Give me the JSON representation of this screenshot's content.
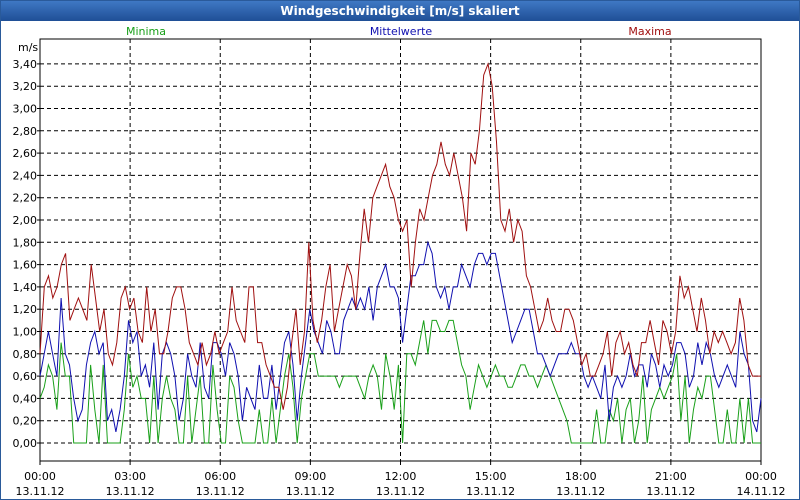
{
  "window": {
    "title": "Windgeschwindigkeit [m/s] skaliert"
  },
  "chart_data": {
    "type": "line",
    "unit_label": "m/s",
    "ylim": [
      0,
      3.5
    ],
    "yticks": [
      "0,00",
      "0,20",
      "0,40",
      "0,60",
      "0,80",
      "1,00",
      "1,20",
      "1,40",
      "1,60",
      "1,80",
      "2,00",
      "2,20",
      "2,40",
      "2,60",
      "2,80",
      "3,00",
      "3,20",
      "3,40"
    ],
    "xticks": [
      {
        "time": "00:00",
        "date": "13.11.12"
      },
      {
        "time": "03:00",
        "date": "13.11.12"
      },
      {
        "time": "06:00",
        "date": "13.11.12"
      },
      {
        "time": "09:00",
        "date": "13.11.12"
      },
      {
        "time": "12:00",
        "date": "13.11.12"
      },
      {
        "time": "15:00",
        "date": "13.11.12"
      },
      {
        "time": "18:00",
        "date": "13.11.12"
      },
      {
        "time": "21:00",
        "date": "13.11.12"
      },
      {
        "time": "00:00",
        "date": "14.11.12"
      }
    ],
    "x_range_hours": [
      0,
      24
    ],
    "grid": true,
    "legend_position": "top",
    "series": [
      {
        "name": "Minima",
        "color": "#1aa01a",
        "values": [
          0.4,
          0.5,
          0.7,
          0.6,
          0.3,
          0.9,
          0.6,
          0.6,
          0.0,
          0.0,
          0.0,
          0.0,
          0.7,
          0.3,
          0.0,
          0.7,
          0.0,
          0.0,
          0.0,
          0.0,
          0.3,
          0.8,
          0.5,
          0.6,
          0.4,
          0.4,
          0.0,
          0.6,
          0.0,
          0.4,
          0.6,
          0.4,
          0.3,
          0.0,
          0.0,
          0.6,
          0.0,
          0.3,
          0.6,
          0.0,
          0.0,
          0.7,
          0.3,
          0.0,
          0.0,
          0.6,
          0.5,
          0.2,
          0.0,
          0.0,
          0.0,
          0.0,
          0.3,
          0.0,
          0.0,
          0.4,
          0.0,
          0.3,
          0.6,
          0.8,
          0.5,
          0.0,
          0.4,
          0.6,
          0.8,
          0.8,
          0.6,
          0.6,
          0.6,
          0.6,
          0.6,
          0.5,
          0.6,
          0.6,
          0.6,
          0.6,
          0.5,
          0.4,
          0.6,
          0.7,
          0.6,
          0.3,
          0.8,
          0.6,
          0.3,
          0.7,
          0.0,
          0.8,
          0.8,
          0.7,
          0.9,
          1.1,
          0.8,
          1.1,
          1.1,
          1.0,
          1.0,
          1.1,
          1.1,
          0.9,
          0.7,
          0.6,
          0.3,
          0.5,
          0.7,
          0.6,
          0.5,
          0.6,
          0.7,
          0.6,
          0.6,
          0.5,
          0.5,
          0.6,
          0.7,
          0.7,
          0.6,
          0.6,
          0.5,
          0.6,
          0.7,
          0.6,
          0.5,
          0.4,
          0.3,
          0.2,
          0.0,
          0.0,
          0.0,
          0.0,
          0.0,
          0.0,
          0.3,
          0.0,
          0.0,
          0.3,
          0.2,
          0.4,
          0.0,
          0.3,
          0.4,
          0.0,
          0.2,
          0.6,
          0.0,
          0.3,
          0.4,
          0.5,
          0.4,
          0.5,
          0.6,
          0.8,
          0.2,
          0.6,
          0.0,
          0.3,
          0.5,
          0.4,
          0.6,
          0.6,
          0.3,
          0.0,
          0.0,
          0.3,
          0.0,
          0.0,
          0.4,
          0.0,
          0.4,
          0.0,
          0.0,
          0.0
        ]
      },
      {
        "name": "Mittelwerte",
        "color": "#1010b0",
        "values": [
          0.6,
          0.8,
          1.0,
          0.8,
          0.6,
          1.3,
          0.8,
          0.7,
          0.4,
          0.2,
          0.3,
          0.7,
          0.9,
          1.0,
          0.8,
          0.9,
          0.2,
          0.3,
          0.1,
          0.3,
          0.6,
          1.1,
          0.9,
          1.0,
          0.6,
          0.7,
          0.5,
          0.9,
          0.3,
          0.8,
          0.9,
          0.8,
          0.6,
          0.2,
          0.4,
          0.8,
          0.6,
          0.5,
          0.9,
          0.5,
          0.4,
          0.9,
          0.9,
          0.8,
          0.6,
          0.9,
          0.8,
          0.6,
          0.2,
          0.5,
          0.4,
          0.3,
          0.7,
          0.4,
          0.4,
          0.7,
          0.3,
          0.6,
          0.9,
          1.0,
          0.7,
          0.2,
          0.6,
          0.9,
          1.2,
          1.0,
          0.9,
          0.8,
          1.1,
          1.0,
          0.8,
          0.8,
          1.1,
          1.2,
          1.3,
          1.2,
          1.3,
          1.2,
          1.4,
          1.1,
          1.4,
          1.5,
          1.6,
          1.4,
          1.4,
          1.3,
          0.9,
          1.2,
          1.5,
          1.5,
          1.6,
          1.6,
          1.8,
          1.7,
          1.4,
          1.3,
          1.4,
          1.2,
          1.4,
          1.4,
          1.6,
          1.5,
          1.4,
          1.6,
          1.7,
          1.7,
          1.6,
          1.7,
          1.7,
          1.5,
          1.3,
          1.1,
          0.9,
          1.0,
          1.1,
          1.2,
          1.2,
          1.0,
          0.8,
          0.8,
          0.7,
          0.6,
          0.7,
          0.8,
          0.8,
          0.8,
          0.9,
          0.8,
          0.8,
          0.6,
          0.5,
          0.6,
          0.5,
          0.4,
          0.7,
          0.2,
          0.5,
          0.6,
          0.5,
          0.6,
          0.8,
          0.6,
          0.7,
          0.7,
          0.5,
          0.8,
          0.7,
          0.5,
          0.7,
          0.6,
          0.7,
          0.9,
          0.9,
          0.8,
          0.5,
          0.6,
          0.9,
          0.7,
          0.9,
          0.8,
          0.6,
          0.5,
          0.6,
          0.7,
          0.6,
          0.5,
          1.0,
          0.8,
          0.7,
          0.2,
          0.1,
          0.4
        ]
      },
      {
        "name": "Maxima",
        "color": "#a01010",
        "values": [
          0.8,
          1.4,
          1.5,
          1.3,
          1.4,
          1.6,
          1.7,
          1.1,
          1.2,
          1.3,
          1.2,
          1.1,
          1.6,
          1.3,
          1.0,
          1.2,
          0.8,
          0.7,
          0.9,
          1.3,
          1.4,
          1.2,
          1.3,
          1.0,
          0.9,
          1.4,
          1.0,
          1.2,
          0.8,
          0.8,
          1.0,
          1.3,
          1.4,
          1.4,
          1.2,
          0.9,
          0.8,
          0.7,
          0.9,
          0.7,
          0.8,
          1.0,
          0.8,
          0.9,
          1.0,
          1.4,
          1.1,
          1.0,
          0.9,
          1.4,
          1.4,
          0.9,
          0.9,
          0.7,
          0.6,
          0.5,
          0.5,
          0.3,
          0.5,
          0.9,
          1.2,
          0.7,
          1.0,
          1.8,
          1.1,
          0.9,
          1.1,
          1.4,
          1.6,
          1.0,
          1.2,
          1.4,
          1.6,
          1.5,
          1.2,
          1.7,
          2.1,
          1.8,
          2.2,
          2.3,
          2.4,
          2.5,
          2.3,
          2.2,
          2.0,
          1.9,
          2.0,
          1.4,
          1.8,
          2.1,
          2.0,
          2.2,
          2.4,
          2.5,
          2.7,
          2.5,
          2.4,
          2.6,
          2.4,
          2.2,
          1.9,
          2.6,
          2.5,
          2.8,
          3.3,
          3.4,
          3.2,
          2.7,
          2.0,
          1.9,
          2.1,
          1.8,
          2.0,
          1.9,
          1.5,
          1.4,
          1.2,
          1.0,
          1.1,
          1.3,
          1.1,
          1.0,
          1.0,
          1.2,
          1.2,
          1.1,
          0.9,
          0.7,
          0.8,
          0.6,
          0.6,
          0.7,
          0.8,
          1.0,
          0.6,
          0.9,
          1.0,
          0.8,
          0.9,
          0.7,
          0.6,
          0.9,
          0.9,
          1.1,
          0.9,
          0.7,
          1.1,
          1.0,
          0.8,
          1.0,
          1.5,
          1.3,
          1.4,
          1.2,
          1.0,
          1.3,
          1.1,
          0.8,
          1.0,
          0.9,
          1.0,
          0.9,
          0.8,
          0.9,
          1.3,
          1.1,
          0.7,
          0.6,
          0.6,
          0.6
        ]
      }
    ]
  }
}
